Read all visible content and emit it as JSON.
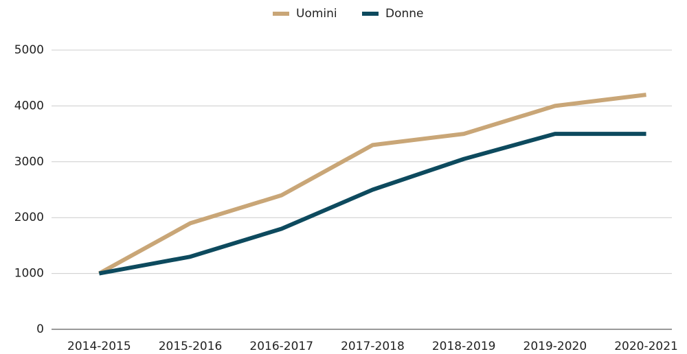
{
  "chart_data": {
    "type": "line",
    "categories": [
      "2014-2015",
      "2015-2016",
      "2016-2017",
      "2017-2018",
      "2018-2019",
      "2019-2020",
      "2020-2021"
    ],
    "series": [
      {
        "name": "Uomini",
        "color": "#c9a677",
        "values": [
          1000,
          1900,
          2400,
          3300,
          3500,
          4000,
          4200
        ]
      },
      {
        "name": "Donne",
        "color": "#0d4a5e",
        "values": [
          1000,
          1300,
          1800,
          2500,
          3050,
          3500,
          3500
        ]
      }
    ],
    "ylim": [
      0,
      5000
    ],
    "yticks": [
      0,
      1000,
      2000,
      3000,
      4000,
      5000
    ],
    "grid": true,
    "legend": "top"
  }
}
